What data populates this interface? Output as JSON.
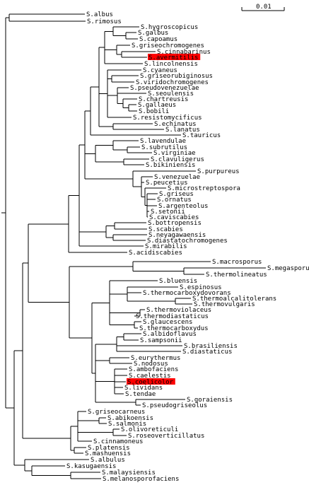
{
  "scale_bar": {
    "label": "0.01"
  },
  "tree": {
    "leaves": [
      "S.albus",
      "S.rimosus",
      "S.hygroscopicus",
      "S.galbus",
      "S.capoamus",
      "S.griseochromogenes",
      "S.cinnabarinus",
      "S.avermitilis",
      "S.lincolnensis",
      "S.cyaneus",
      "S.griseorubiginosus",
      "S.viridochromogenes",
      "S.pseudovenezuelae",
      "S.seoulensis",
      "S.chartreusis",
      "S.gallaeus",
      "S.bobili",
      "S.resistomycificus",
      "S.echinatus",
      "S.lanatus",
      "S.tauricus",
      "S.lavendulae",
      "S.subrutilus",
      "S.virginiae",
      "S.clavuligerus",
      "S.bikiniensis",
      "S.purpureus",
      "S.venezuelae",
      "S.peucetius",
      "S.microstreptospora",
      "S.griseus",
      "S.ornatus",
      "S.argenteolus",
      "S.setonii",
      "S.caviscabies",
      "S.bottropensis",
      "S.scabies",
      "S.neyagawaensis",
      "S.diastatochromogenes",
      "S.mirabilis",
      "S.acidiscabies",
      "S.macrosporus",
      "S.megasporus",
      "S.thermolineatus",
      "S.bluensis",
      "S.espinosus",
      "S.thermocarboxydovorans",
      "S.thermoalcalitolerans",
      "S.thermovulgaris",
      "S.thermoviolaceus",
      "S.thermodiastaticus",
      "S.glaucescens",
      "S.thermocarboxydus",
      "S.albidoflavus",
      "S.sampsonii",
      "S.brasiliensis",
      "S.diastaticus",
      "S.eurythermus",
      "S.nodosus",
      "S.ambofaciens",
      "S.caelestis",
      "S.coelicolor",
      "S.lividans",
      "S.tendae",
      "S.goraiensis",
      "S.pseudogriseolus",
      "S.griseocarneus",
      "S.abikoensis",
      "S.salmonis",
      "S.olivoreticuli",
      "S.roseoverticillatus",
      "S.cinnamoneus",
      "S.platensis",
      "S.mashuensis",
      "S.albulus",
      "S.kasugaensis",
      "S.malaysiensis",
      "S.melanosporofaciens"
    ],
    "highlighted": [
      "S.avermitilis",
      "S.coelicolor"
    ],
    "highlight_color": "#ff0000",
    "line_color": "#000000"
  }
}
